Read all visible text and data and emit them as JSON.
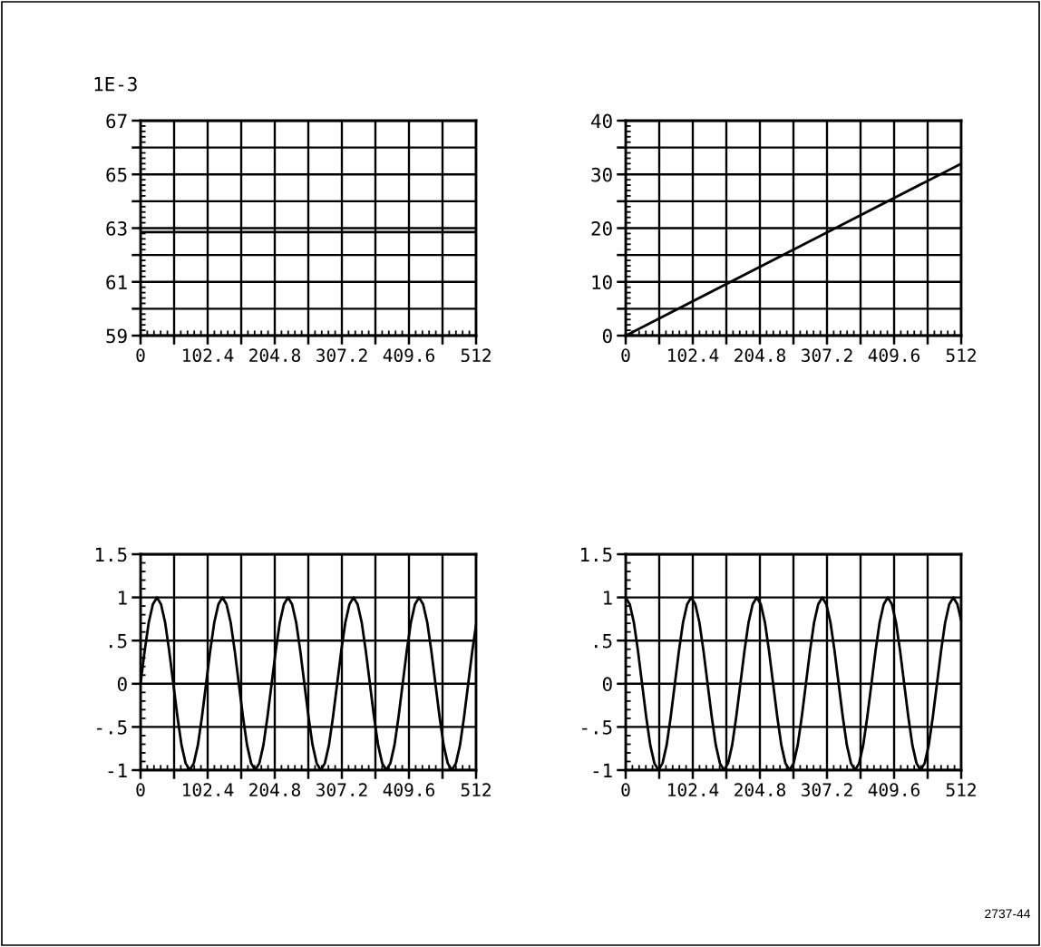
{
  "chart_data": [
    {
      "type": "line",
      "ylabel": "1E-3",
      "x": [
        0,
        512
      ],
      "series": [
        {
          "color": "#000000",
          "values": [
            62.85,
            62.85
          ]
        }
      ],
      "line_style": "solid",
      "grid": true,
      "xlim": [
        0,
        512
      ],
      "ylim": [
        59,
        67
      ],
      "xticks": [
        0,
        {
          "value": 51.2,
          "label": null
        },
        102.4,
        {
          "value": 153.6,
          "label": null
        },
        204.8,
        {
          "value": 256,
          "label": null
        },
        307.2,
        {
          "value": 358.4,
          "label": null
        },
        409.6,
        {
          "value": 460.8,
          "label": null
        },
        512
      ],
      "yticks": [
        59,
        {
          "value": 60,
          "label": null
        },
        61,
        {
          "value": 62,
          "label": null
        },
        63,
        {
          "value": 64,
          "label": null
        },
        65,
        {
          "value": 66,
          "label": null
        },
        67
      ]
    },
    {
      "type": "line",
      "x": [
        0,
        512
      ],
      "series": [
        {
          "color": "#000000",
          "values": [
            0,
            32
          ]
        }
      ],
      "line_style": "solid",
      "grid": true,
      "xlim": [
        0,
        512
      ],
      "ylim": [
        0,
        40
      ],
      "xticks": [
        0,
        {
          "value": 51.2,
          "label": null
        },
        102.4,
        {
          "value": 153.6,
          "label": null
        },
        204.8,
        {
          "value": 256,
          "label": null
        },
        307.2,
        {
          "value": 358.4,
          "label": null
        },
        409.6,
        {
          "value": 460.8,
          "label": null
        },
        512
      ],
      "yticks": [
        0,
        {
          "value": 5,
          "label": null
        },
        10,
        {
          "value": 15,
          "label": null
        },
        20,
        {
          "value": 25,
          "label": null
        },
        30,
        {
          "value": 35,
          "label": null
        },
        40
      ]
    },
    {
      "type": "line",
      "x": [
        0,
        6.25,
        12.5,
        18.75,
        25,
        31.25,
        37.5,
        43.75,
        50,
        56.25,
        62.5,
        68.75,
        75,
        81.25,
        87.5,
        93.75,
        100,
        106.25,
        112.5,
        118.75,
        125,
        131.25,
        137.5,
        143.75,
        150,
        156.25,
        162.5,
        168.75,
        175,
        181.25,
        187.5,
        193.75,
        200,
        206.25,
        212.5,
        218.75,
        225,
        231.25,
        237.5,
        243.75,
        250,
        256.25,
        262.5,
        268.75,
        275,
        281.25,
        287.5,
        293.75,
        300,
        306.25,
        312.5,
        318.75,
        325,
        331.25,
        337.5,
        343.75,
        350,
        356.25,
        362.5,
        368.75,
        375,
        381.25,
        387.5,
        393.75,
        400,
        406.25,
        412.5,
        418.75,
        425,
        431.25,
        437.5,
        443.75,
        450,
        456.25,
        462.5,
        468.75,
        475,
        481.25,
        487.5,
        493.75,
        500,
        506.25,
        512
      ],
      "series": [
        {
          "color": "#000000",
          "values": [
            0,
            0.38,
            0.71,
            0.92,
            1,
            0.92,
            0.71,
            0.38,
            0,
            -0.38,
            -0.71,
            -0.92,
            -1,
            -0.92,
            -0.71,
            -0.38,
            0,
            0.38,
            0.71,
            0.92,
            1,
            0.92,
            0.71,
            0.38,
            0,
            -0.38,
            -0.71,
            -0.92,
            -1,
            -0.92,
            -0.71,
            -0.38,
            0,
            0.38,
            0.71,
            0.92,
            1,
            0.92,
            0.71,
            0.38,
            0,
            -0.38,
            -0.71,
            -0.92,
            -1,
            -0.92,
            -0.71,
            -0.38,
            0,
            0.38,
            0.71,
            0.92,
            1,
            0.92,
            0.71,
            0.38,
            0,
            -0.38,
            -0.71,
            -0.92,
            -1,
            -0.92,
            -0.71,
            -0.38,
            0,
            0.38,
            0.71,
            0.92,
            1,
            0.92,
            0.71,
            0.38,
            0,
            -0.38,
            -0.71,
            -0.92,
            -1,
            -0.92,
            -0.71,
            -0.38,
            0,
            0.38,
            0.68
          ]
        }
      ],
      "line_style": "solid",
      "grid": true,
      "xlim": [
        0,
        512
      ],
      "ylim": [
        -1,
        1.5
      ],
      "xticks": [
        0,
        {
          "value": 51.2,
          "label": null
        },
        102.4,
        {
          "value": 153.6,
          "label": null
        },
        204.8,
        {
          "value": 256,
          "label": null
        },
        307.2,
        {
          "value": 358.4,
          "label": null
        },
        409.6,
        {
          "value": 460.8,
          "label": null
        },
        512
      ],
      "yticks": [
        -1,
        {
          "value": -0.5,
          "label": "-.5"
        },
        0,
        {
          "value": 0.5,
          "label": ".5"
        },
        1,
        1.5
      ]
    },
    {
      "type": "line",
      "x": [
        0,
        6.25,
        12.5,
        18.75,
        25,
        31.25,
        37.5,
        43.75,
        50,
        56.25,
        62.5,
        68.75,
        75,
        81.25,
        87.5,
        93.75,
        100,
        106.25,
        112.5,
        118.75,
        125,
        131.25,
        137.5,
        143.75,
        150,
        156.25,
        162.5,
        168.75,
        175,
        181.25,
        187.5,
        193.75,
        200,
        206.25,
        212.5,
        218.75,
        225,
        231.25,
        237.5,
        243.75,
        250,
        256.25,
        262.5,
        268.75,
        275,
        281.25,
        287.5,
        293.75,
        300,
        306.25,
        312.5,
        318.75,
        325,
        331.25,
        337.5,
        343.75,
        350,
        356.25,
        362.5,
        368.75,
        375,
        381.25,
        387.5,
        393.75,
        400,
        406.25,
        412.5,
        418.75,
        425,
        431.25,
        437.5,
        443.75,
        450,
        456.25,
        462.5,
        468.75,
        475,
        481.25,
        487.5,
        493.75,
        500,
        506.25,
        512
      ],
      "series": [
        {
          "color": "#000000",
          "values": [
            1,
            0.92,
            0.71,
            0.38,
            0,
            -0.38,
            -0.71,
            -0.92,
            -1,
            -0.92,
            -0.71,
            -0.38,
            0,
            0.38,
            0.71,
            0.92,
            1,
            0.92,
            0.71,
            0.38,
            0,
            -0.38,
            -0.71,
            -0.92,
            -1,
            -0.92,
            -0.71,
            -0.38,
            0,
            0.38,
            0.71,
            0.92,
            1,
            0.92,
            0.71,
            0.38,
            0,
            -0.38,
            -0.71,
            -0.92,
            -1,
            -0.92,
            -0.71,
            -0.38,
            0,
            0.38,
            0.71,
            0.92,
            1,
            0.92,
            0.71,
            0.38,
            0,
            -0.38,
            -0.71,
            -0.92,
            -1,
            -0.92,
            -0.71,
            -0.38,
            0,
            0.38,
            0.71,
            0.92,
            1,
            0.92,
            0.71,
            0.38,
            0,
            -0.38,
            -0.71,
            -0.92,
            -1,
            -0.92,
            -0.71,
            -0.38,
            0,
            0.38,
            0.71,
            0.92,
            1,
            0.92,
            0.73
          ]
        }
      ],
      "line_style": "solid",
      "grid": true,
      "xlim": [
        0,
        512
      ],
      "ylim": [
        -1,
        1.5
      ],
      "xticks": [
        0,
        {
          "value": 51.2,
          "label": null
        },
        102.4,
        {
          "value": 153.6,
          "label": null
        },
        204.8,
        {
          "value": 256,
          "label": null
        },
        307.2,
        {
          "value": 358.4,
          "label": null
        },
        409.6,
        {
          "value": 460.8,
          "label": null
        },
        512
      ],
      "yticks": [
        -1,
        {
          "value": -0.5,
          "label": "-.5"
        },
        0,
        {
          "value": 0.5,
          "label": ".5"
        },
        1,
        1.5
      ],
      "annotations": [
        "2737-44"
      ]
    }
  ]
}
